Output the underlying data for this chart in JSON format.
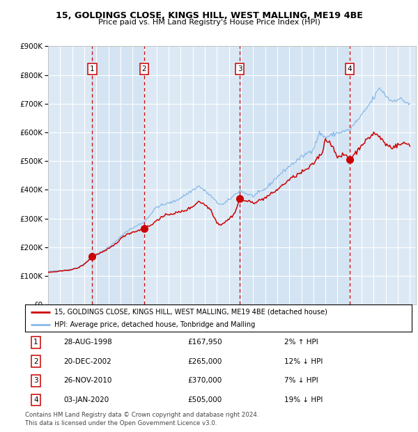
{
  "title": "15, GOLDINGS CLOSE, KINGS HILL, WEST MALLING, ME19 4BE",
  "subtitle": "Price paid vs. HM Land Registry's House Price Index (HPI)",
  "legend_label_red": "15, GOLDINGS CLOSE, KINGS HILL, WEST MALLING, ME19 4BE (detached house)",
  "legend_label_blue": "HPI: Average price, detached house, Tonbridge and Malling",
  "footer1": "Contains HM Land Registry data © Crown copyright and database right 2024.",
  "footer2": "This data is licensed under the Open Government Licence v3.0.",
  "purchases": [
    {
      "num": 1,
      "date": "28-AUG-1998",
      "price": 167950,
      "pct": "2%",
      "dir": "↑"
    },
    {
      "num": 2,
      "date": "20-DEC-2002",
      "price": 265000,
      "pct": "12%",
      "dir": "↓"
    },
    {
      "num": 3,
      "date": "26-NOV-2010",
      "price": 370000,
      "pct": "7%",
      "dir": "↓"
    },
    {
      "num": 4,
      "date": "03-JAN-2020",
      "price": 505000,
      "pct": "19%",
      "dir": "↓"
    }
  ],
  "purchase_dates_decimal": [
    1998.66,
    2002.97,
    2010.9,
    2020.01
  ],
  "purchase_prices": [
    167950,
    265000,
    370000,
    505000
  ],
  "bg_color": "#dce9f5",
  "line_color_red": "#cc0000",
  "line_color_blue": "#87b9e8",
  "dot_color_red": "#cc0000",
  "ylim": [
    0,
    900000
  ],
  "yticks": [
    0,
    100000,
    200000,
    300000,
    400000,
    500000,
    600000,
    700000,
    800000,
    900000
  ],
  "start_year": 1995,
  "end_year": 2025
}
